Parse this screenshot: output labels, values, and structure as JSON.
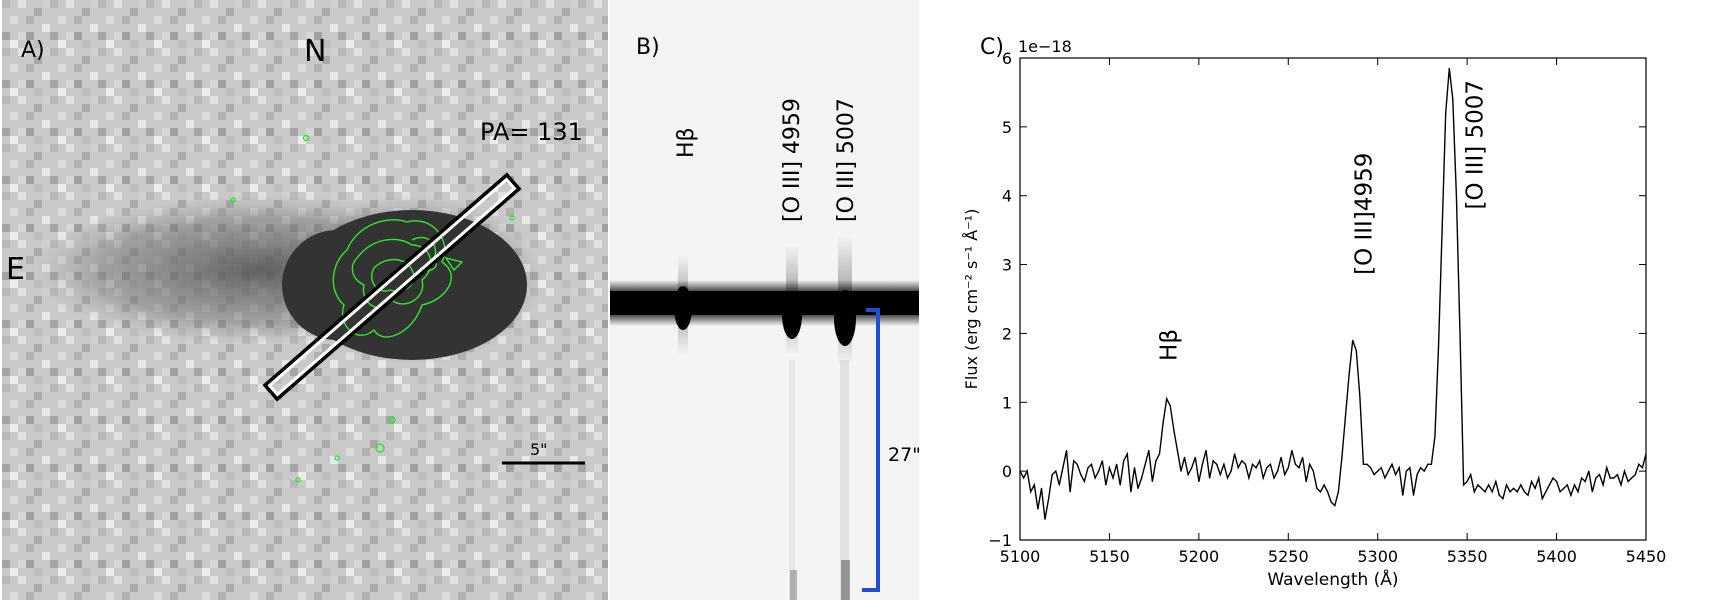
{
  "panel_a": {
    "label": "A)",
    "north": "N",
    "east": "E",
    "pa_text": "PA= 131",
    "scale_text": "5\""
  },
  "panel_b": {
    "label": "B)",
    "lines": [
      "Hβ",
      "[O III] 4959",
      "[O III] 5007"
    ],
    "extent_text": "27\"",
    "bracket_color": "#1f4fd6"
  },
  "chart_data": {
    "type": "line",
    "panel_label": "C)",
    "title": "",
    "xlabel": "Wavelength (Å)",
    "ylabel": "Flux (erg cm⁻² s⁻¹ Å⁻¹)",
    "y_offset_text": "1e−18",
    "xlim": [
      5100,
      5450
    ],
    "ylim": [
      -1,
      6
    ],
    "xticks": [
      5100,
      5150,
      5200,
      5250,
      5300,
      5350,
      5400,
      5450
    ],
    "yticks": [
      -1,
      0,
      1,
      2,
      3,
      4,
      5,
      6
    ],
    "ytick_labels": [
      "−1",
      "0",
      "1",
      "2",
      "3",
      "4",
      "5",
      "6"
    ],
    "annotations": [
      {
        "text": "Hβ",
        "x": 5183,
        "y": 1.6
      },
      {
        "text": "[O III]4959",
        "x": 5292,
        "y": 2.85
      },
      {
        "text": "[O III] 5007",
        "x": 5354,
        "y": 3.8
      }
    ],
    "series": [
      {
        "x": [
          5100,
          5102,
          5104,
          5106,
          5108,
          5110,
          5112,
          5114,
          5116,
          5118,
          5120,
          5122,
          5124,
          5126,
          5128,
          5130,
          5132,
          5134,
          5136,
          5138,
          5140,
          5142,
          5144,
          5146,
          5148,
          5150,
          5152,
          5154,
          5156,
          5158,
          5160,
          5162,
          5164,
          5166,
          5168,
          5170,
          5172,
          5174,
          5176,
          5178,
          5180,
          5182,
          5184,
          5186,
          5188,
          5190,
          5192,
          5194,
          5196,
          5198,
          5200,
          5202,
          5204,
          5206,
          5208,
          5210,
          5212,
          5214,
          5216,
          5218,
          5220,
          5222,
          5224,
          5226,
          5228,
          5230,
          5232,
          5234,
          5236,
          5238,
          5240,
          5242,
          5244,
          5246,
          5248,
          5250,
          5252,
          5254,
          5256,
          5258,
          5260,
          5262,
          5264,
          5266,
          5268,
          5270,
          5272,
          5274,
          5276,
          5278,
          5280,
          5282,
          5284,
          5286,
          5288,
          5290,
          5292,
          5294,
          5296,
          5298,
          5300,
          5302,
          5304,
          5306,
          5308,
          5310,
          5312,
          5314,
          5316,
          5318,
          5320,
          5322,
          5324,
          5326,
          5328,
          5330,
          5332,
          5334,
          5336,
          5338,
          5340,
          5342,
          5344,
          5346,
          5348,
          5350,
          5352,
          5354,
          5356,
          5358,
          5360,
          5362,
          5364,
          5366,
          5368,
          5370,
          5372,
          5374,
          5376,
          5378,
          5380,
          5382,
          5384,
          5386,
          5388,
          5390,
          5392,
          5394,
          5396,
          5398,
          5400,
          5402,
          5404,
          5406,
          5408,
          5410,
          5412,
          5414,
          5416,
          5418,
          5420,
          5422,
          5424,
          5426,
          5428,
          5430,
          5432,
          5434,
          5436,
          5438,
          5440,
          5442,
          5444,
          5446,
          5448,
          5450
        ],
        "y": [
          0.0,
          -0.1,
          0.0,
          -0.3,
          -0.2,
          -0.55,
          -0.25,
          -0.7,
          -0.4,
          -0.05,
          0.0,
          -0.2,
          0.05,
          0.3,
          -0.3,
          0.15,
          0.1,
          -0.05,
          -0.15,
          0.05,
          0.1,
          -0.1,
          0.0,
          0.15,
          -0.2,
          0.05,
          -0.1,
          0.1,
          -0.2,
          0.15,
          0.25,
          -0.3,
          0.05,
          -0.25,
          -0.1,
          0.1,
          0.3,
          -0.15,
          0.15,
          0.25,
          0.7,
          1.05,
          0.95,
          0.6,
          0.3,
          0.0,
          0.2,
          -0.05,
          0.05,
          0.2,
          -0.15,
          0.1,
          0.3,
          -0.1,
          0.15,
          0.1,
          -0.05,
          0.1,
          -0.1,
          0.0,
          0.25,
          0.05,
          0.15,
          0.1,
          -0.1,
          0.1,
          0.05,
          0.15,
          -0.1,
          0.05,
          0.1,
          -0.1,
          0.0,
          0.2,
          -0.05,
          0.05,
          0.3,
          0.1,
          0.05,
          0.2,
          -0.15,
          0.1,
          0.0,
          -0.25,
          -0.3,
          -0.2,
          -0.3,
          -0.45,
          -0.5,
          -0.3,
          0.2,
          0.8,
          1.4,
          1.9,
          1.75,
          1.1,
          0.1,
          0.1,
          0.05,
          -0.05,
          0.0,
          0.05,
          -0.1,
          0.0,
          0.1,
          -0.05,
          0.05,
          -0.35,
          0.0,
          0.05,
          -0.35,
          -0.05,
          0.05,
          0.0,
          0.1,
          0.1,
          0.5,
          1.8,
          3.5,
          5.2,
          5.85,
          5.4,
          4.0,
          2.0,
          -0.2,
          -0.15,
          -0.05,
          -0.3,
          -0.2,
          -0.25,
          -0.3,
          -0.2,
          -0.3,
          -0.15,
          -0.35,
          -0.4,
          -0.2,
          -0.3,
          -0.25,
          -0.3,
          -0.2,
          -0.3,
          -0.35,
          -0.15,
          -0.25,
          -0.1,
          -0.4,
          -0.3,
          -0.2,
          -0.1,
          -0.15,
          -0.3,
          -0.25,
          -0.2,
          -0.35,
          -0.2,
          -0.3,
          -0.1,
          -0.15,
          0.0,
          -0.3,
          -0.1,
          -0.05,
          -0.2,
          0.05,
          -0.1,
          -0.1,
          -0.05,
          -0.2,
          0.0,
          -0.15,
          -0.1,
          -0.05,
          0.1,
          0.05,
          0.25
        ]
      }
    ]
  }
}
